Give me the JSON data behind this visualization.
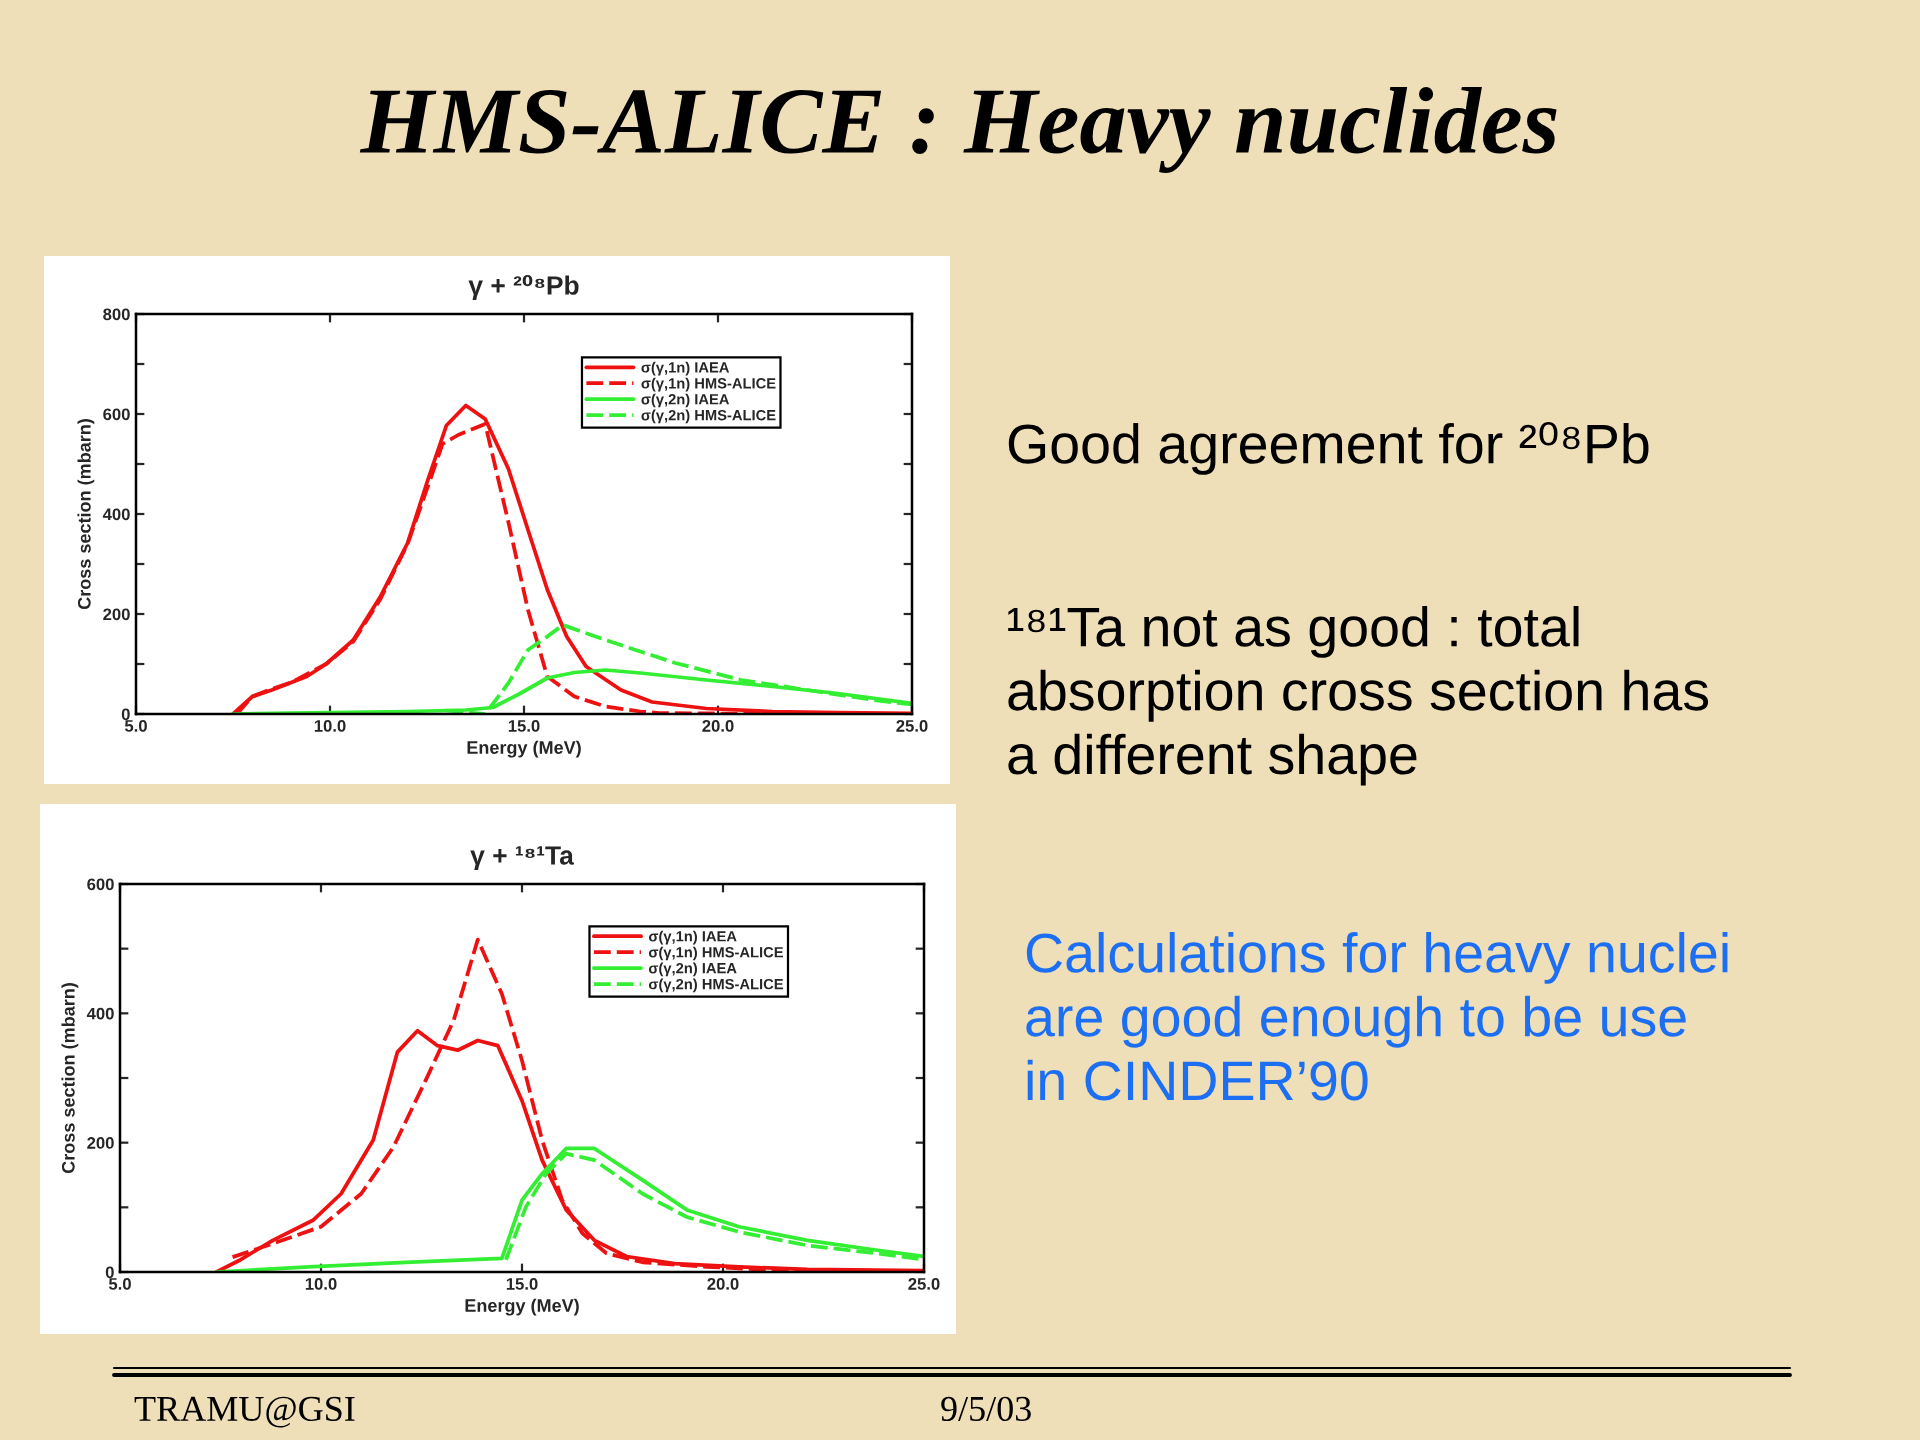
{
  "chart_data": [
    {
      "type": "other",
      "title": "HMS-ALICE : Heavy nuclides",
      "annotations": [
        "Good agreement for ²⁰⁸Pb",
        "¹⁸¹Ta not as good : total\nabsorption cross section has\na different shape",
        "Calculations for heavy nuclei\nare good enough to be use\nin CINDER’90",
        "TRAMU@GSI",
        "9/5/03"
      ]
    },
    {
      "type": "line",
      "title": "γ + ²⁰⁸Pb",
      "xlabel": "Energy (MeV)",
      "ylabel": "Cross section (mbarn)",
      "xlim": [
        5,
        25
      ],
      "xticks": [
        {
          "value": 5,
          "label": "5.0"
        },
        {
          "value": 10,
          "label": "10.0"
        },
        {
          "value": 15,
          "label": "15.0"
        },
        {
          "value": 20,
          "label": "20.0"
        },
        {
          "value": 25,
          "label": "25.0"
        }
      ],
      "ylim": [
        0,
        800
      ],
      "yticks": [
        0,
        {
          "value": 100,
          "label": null
        },
        200,
        {
          "value": 300,
          "label": null
        },
        400,
        {
          "value": 500,
          "label": null
        },
        600,
        {
          "value": 700,
          "label": null
        },
        800
      ],
      "legend": "top right",
      "series": [
        {
          "name": "σ(γ,1n) IAEA",
          "color": "#ee1111",
          "line_style": "solid",
          "x": [
            7.5,
            8.0,
            8.5,
            9.4,
            9.9,
            10.6,
            11.3,
            12.0,
            12.5,
            13.0,
            13.5,
            14.0,
            14.6,
            15.1,
            15.6,
            16.1,
            16.6,
            17.5,
            18.3,
            19.7,
            21.4,
            23.1,
            25.0
          ],
          "values": [
            0,
            35,
            48,
            75,
            100,
            148,
            235,
            342,
            463,
            577,
            617,
            590,
            490,
            369,
            249,
            155,
            95,
            48,
            24,
            11,
            5,
            3,
            1
          ]
        },
        {
          "name": "σ(γ,1n) HMS-ALICE",
          "color": "#ee1111",
          "line_style": "dashed",
          "x": [
            7.6,
            8.0,
            8.5,
            9.0,
            9.9,
            10.6,
            11.3,
            12.0,
            12.5,
            12.9,
            13.3,
            14.0,
            14.6,
            15.1,
            15.6,
            16.3,
            17.1,
            18.0,
            18.5,
            20.0,
            22.0,
            25.0
          ],
          "values": [
            0,
            35,
            50,
            63,
            100,
            145,
            230,
            340,
            450,
            540,
            558,
            580,
            383,
            209,
            75,
            35,
            15,
            5,
            2,
            1,
            0,
            0
          ]
        },
        {
          "name": "σ(γ,2n) IAEA",
          "color": "#33ee33",
          "line_style": "solid",
          "x": [
            7.5,
            9.0,
            10.0,
            11.0,
            12.0,
            13.5,
            14.2,
            14.9,
            15.6,
            16.3,
            17.1,
            18.0,
            19.7,
            21.4,
            23.1,
            25.0
          ],
          "values": [
            0,
            2,
            3,
            4,
            5,
            8,
            13,
            41,
            72,
            83,
            88,
            82,
            68,
            55,
            41,
            21
          ]
        },
        {
          "name": "σ(γ,2n) HMS-ALICE",
          "color": "#33ee33",
          "line_style": "dashed",
          "x": [
            13.0,
            14.0,
            14.6,
            15.1,
            15.6,
            16.0,
            17.1,
            18.9,
            20.6,
            22.3,
            24.0,
            25.0
          ],
          "values": [
            7,
            0,
            62,
            128,
            155,
            178,
            148,
            102,
            68,
            48,
            28,
            19
          ]
        }
      ]
    },
    {
      "type": "line",
      "title": "γ + ¹⁸¹Ta",
      "xlabel": "Energy (MeV)",
      "ylabel": "Cross section (mbarn)",
      "xlim": [
        5,
        25
      ],
      "xticks": [
        {
          "value": 5,
          "label": "5.0"
        },
        {
          "value": 10,
          "label": "10.0"
        },
        {
          "value": 15,
          "label": "15.0"
        },
        {
          "value": 20,
          "label": "20.0"
        },
        {
          "value": 25,
          "label": "25.0"
        }
      ],
      "ylim": [
        0,
        600
      ],
      "yticks": [
        0,
        {
          "value": 100,
          "label": null
        },
        200,
        {
          "value": 300,
          "label": null
        },
        400,
        {
          "value": 500,
          "label": null
        },
        600
      ],
      "legend": "top right",
      "series": [
        {
          "name": "σ(γ,1n) IAEA",
          "color": "#ee1111",
          "line_style": "solid",
          "x": [
            7.4,
            8.0,
            8.8,
            9.8,
            10.5,
            11.3,
            11.9,
            12.4,
            12.9,
            13.4,
            13.9,
            14.4,
            15.0,
            15.5,
            16.1,
            16.8,
            17.6,
            18.8,
            20.4,
            22.1,
            25.0
          ],
          "values": [
            0,
            19,
            49,
            80,
            121,
            204,
            340,
            373,
            350,
            343,
            358,
            350,
            265,
            173,
            96,
            49,
            24,
            13,
            8,
            4,
            2
          ]
        },
        {
          "name": "σ(γ,1n) HMS-ALICE",
          "color": "#ee1111",
          "line_style": "dashed",
          "x": [
            7.8,
            8.8,
            10.0,
            11.0,
            11.8,
            12.6,
            13.3,
            13.9,
            14.5,
            15.0,
            15.5,
            16.0,
            16.5,
            17.1,
            18.0,
            19.6,
            21.3,
            25.0
          ],
          "values": [
            23,
            44,
            70,
            121,
            193,
            296,
            389,
            514,
            430,
            327,
            204,
            111,
            60,
            29,
            15,
            8,
            3,
            1
          ]
        },
        {
          "name": "σ(γ,2n) IAEA",
          "color": "#33ee33",
          "line_style": "solid",
          "x": [
            7.4,
            9.7,
            12.1,
            14.5,
            15.0,
            15.5,
            16.1,
            16.8,
            18.0,
            19.1,
            20.4,
            22.1,
            23.8,
            25.0
          ],
          "values": [
            0,
            8,
            15,
            21,
            111,
            152,
            191,
            191,
            142,
            96,
            70,
            49,
            34,
            24
          ]
        },
        {
          "name": "σ(γ,2n) HMS-ALICE",
          "color": "#33ee33",
          "line_style": "dashed",
          "x": [
            14.6,
            15.1,
            15.6,
            16.1,
            16.8,
            18.0,
            19.1,
            20.4,
            22.1,
            23.8,
            25.0
          ],
          "values": [
            19,
            101,
            152,
            183,
            173,
            121,
            85,
            62,
            41,
            29,
            19
          ]
        }
      ]
    }
  ]
}
